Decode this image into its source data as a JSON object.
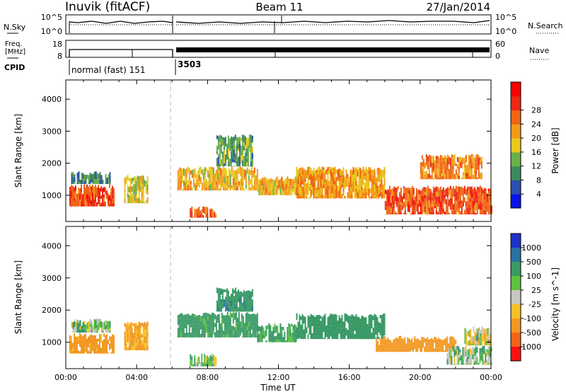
{
  "header": {
    "station": "Inuvik (fitACF)",
    "beam": "Beam 11",
    "date": "27/Jan/2014"
  },
  "status_panels": {
    "nsky_label": "N.Sky",
    "nsearch_label": "N.Search",
    "noise_ticks": [
      "10^5",
      "10^0"
    ],
    "freq_label_line1": "Freq.",
    "freq_label_line2": "[MHz]",
    "freq_ticks": [
      "18",
      "8"
    ],
    "nave_label": "Nave",
    "nave_ticks": [
      "60",
      "0"
    ],
    "cpid_label": "CPID",
    "cpid_segments": [
      {
        "label": "normal (fast) 151",
        "start_hour": 0.0
      },
      {
        "label": "3503",
        "start_hour": 6.1
      }
    ]
  },
  "chart_data": [
    {
      "type": "heatmap",
      "name": "power",
      "xlabel": "Time UT",
      "ylabel": "Slant Range [km]",
      "xlim": [
        0,
        24
      ],
      "ylim": [
        180,
        4600
      ],
      "x_ticks": [
        "00:00",
        "04:00",
        "08:00",
        "12:00",
        "16:00",
        "20:00",
        "00:00"
      ],
      "y_ticks": [
        1000,
        2000,
        3000,
        4000
      ],
      "colorbar": {
        "label": "Power [dB]",
        "ticks": [
          "4",
          "8",
          "12",
          "16",
          "20",
          "24",
          "28"
        ],
        "colors": [
          "#0a14e6",
          "#2b4fae",
          "#3e8a60",
          "#6ab04a",
          "#e8c81e",
          "#f39a1a",
          "#f06414",
          "#ea2814",
          "#ff0000"
        ]
      },
      "data_gap_hours": [
        6.0,
        6.1
      ],
      "regions": [
        {
          "t0": 0.2,
          "t1": 2.7,
          "r0": 650,
          "r1": 1350,
          "value": 28
        },
        {
          "t0": 0.3,
          "t1": 2.5,
          "r0": 1350,
          "r1": 1750,
          "value": 10
        },
        {
          "t0": 3.3,
          "t1": 4.6,
          "r0": 750,
          "r1": 1650,
          "value": 18
        },
        {
          "t0": 6.3,
          "t1": 10.8,
          "r0": 1150,
          "r1": 1900,
          "value": 20
        },
        {
          "t0": 7.0,
          "t1": 8.5,
          "r0": 300,
          "r1": 650,
          "value": 26
        },
        {
          "t0": 8.5,
          "t1": 10.5,
          "r0": 1900,
          "r1": 2900,
          "value": 12
        },
        {
          "t0": 10.8,
          "t1": 13.0,
          "r0": 1000,
          "r1": 1600,
          "value": 20
        },
        {
          "t0": 13.0,
          "t1": 18.0,
          "r0": 900,
          "r1": 1900,
          "value": 22
        },
        {
          "t0": 18.0,
          "t1": 24.0,
          "r0": 400,
          "r1": 1300,
          "value": 28
        },
        {
          "t0": 20.0,
          "t1": 23.5,
          "r0": 1500,
          "r1": 2300,
          "value": 24
        }
      ]
    },
    {
      "type": "heatmap",
      "name": "velocity",
      "xlabel": "Time UT",
      "ylabel": "Slant Range [km]",
      "xlim": [
        0,
        24
      ],
      "ylim": [
        180,
        4600
      ],
      "x_ticks": [
        "00:00",
        "04:00",
        "08:00",
        "12:00",
        "16:00",
        "20:00",
        "00:00"
      ],
      "y_ticks": [
        1000,
        2000,
        3000,
        4000
      ],
      "colorbar": {
        "label": "Velocity [m s^-1]",
        "ticks": [
          "1000",
          "500",
          "100",
          "25",
          "-25",
          "-100",
          "-500",
          "-1000"
        ],
        "colors": [
          "#1e32c8",
          "#2a72a0",
          "#3a9a66",
          "#60c040",
          "#c8c8c0",
          "#f5c028",
          "#f29822",
          "#f06418",
          "#ff1010"
        ]
      },
      "data_gap_hours": [
        6.0,
        6.1
      ],
      "regions": [
        {
          "t0": 0.2,
          "t1": 2.7,
          "r0": 650,
          "r1": 1300,
          "value": -200
        },
        {
          "t0": 0.3,
          "t1": 2.5,
          "r0": 1300,
          "r1": 1750,
          "value": 80
        },
        {
          "t0": 3.3,
          "t1": 4.6,
          "r0": 750,
          "r1": 1650,
          "value": -150
        },
        {
          "t0": 6.3,
          "t1": 10.8,
          "r0": 1150,
          "r1": 1950,
          "value": 200
        },
        {
          "t0": 7.0,
          "t1": 8.5,
          "r0": 250,
          "r1": 650,
          "value": 60
        },
        {
          "t0": 8.5,
          "t1": 10.5,
          "r0": 1950,
          "r1": 2700,
          "value": 400
        },
        {
          "t0": 10.8,
          "t1": 13.0,
          "r0": 1000,
          "r1": 1600,
          "value": 150
        },
        {
          "t0": 13.0,
          "t1": 18.0,
          "r0": 1100,
          "r1": 1900,
          "value": 300
        },
        {
          "t0": 17.5,
          "t1": 22.0,
          "r0": 700,
          "r1": 1200,
          "value": -300
        },
        {
          "t0": 21.5,
          "t1": 24.0,
          "r0": 300,
          "r1": 900,
          "value": 60
        },
        {
          "t0": 22.5,
          "t1": 24.0,
          "r0": 900,
          "r1": 1500,
          "value": 0
        }
      ]
    }
  ]
}
